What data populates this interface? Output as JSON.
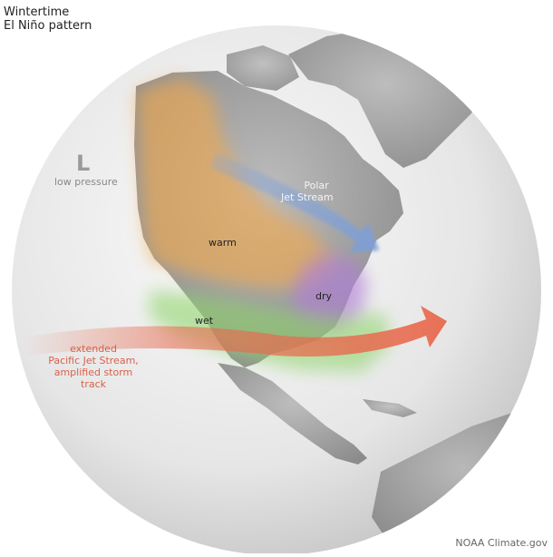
{
  "title": {
    "line1": "Wintertime",
    "line2": "El Niño pattern"
  },
  "labels": {
    "low_symbol": "L",
    "low_pressure": "low pressure",
    "polar_jet_line1": "Polar",
    "polar_jet_line2": "Jet Stream",
    "warm": "warm",
    "dry": "dry",
    "wet": "wet",
    "pacific_jet_line1": "extended",
    "pacific_jet_line2": "Pacific Jet Stream,",
    "pacific_jet_line3": "amplified storm",
    "pacific_jet_line4": "track"
  },
  "credit": "NOAA Climate.gov",
  "colors": {
    "warm_region": "#f2a94e",
    "dry_region": "#b07fd6",
    "wet_region": "#8fd46a",
    "polar_jet": "#8aa7d6",
    "pacific_jet": "#e86a4f",
    "pacific_text": "#d9614a",
    "globe_ocean": "#e8e8e8",
    "land": "#9a9a9a"
  }
}
